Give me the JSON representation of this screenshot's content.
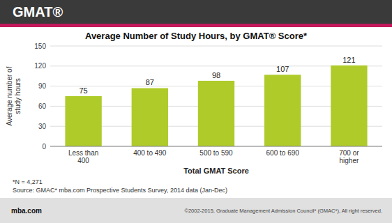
{
  "chart_data": {
    "type": "bar",
    "title": "Average Number of Study Hours, by GMAT® Score*",
    "categories": [
      "Less than\n400",
      "400 to 490",
      "500 to 590",
      "600 to 690",
      "700 or\nhigher"
    ],
    "values": [
      75,
      87,
      98,
      107,
      121
    ],
    "color": "#AECB2A",
    "xlabel": "Total GMAT Score",
    "ylabel": "Average number of\nstudy hours",
    "ylim": [
      0,
      150
    ],
    "yticks": [
      0,
      30,
      60,
      90,
      120,
      150
    ],
    "grid": true,
    "data_labels": true,
    "annotations": [
      "GMAT®",
      "*N = 4,271",
      "Source: GMAC* mba.com Prospective Students Survey, 2014 data (Jan-Dec)",
      "mba.com",
      "©2002-2015, Graduate Management Admission Council* (GMAC*),  All right reserved."
    ]
  }
}
